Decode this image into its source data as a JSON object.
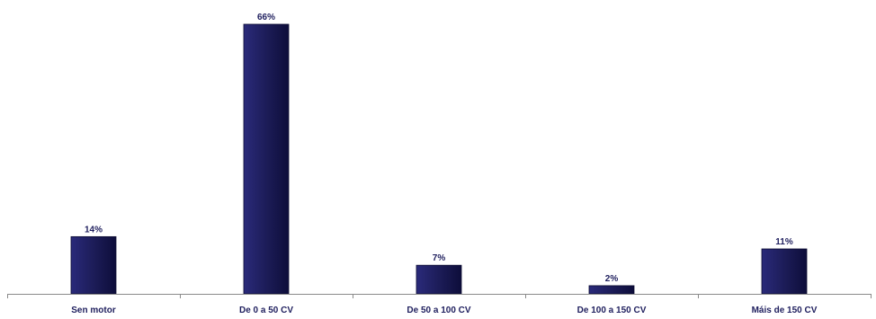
{
  "chart_data": {
    "type": "bar",
    "title": "",
    "xlabel": "",
    "ylabel": "",
    "categories": [
      "Sen motor",
      "De 0 a 50 CV",
      "De 50 a 100 CV",
      "De 100 a 150 CV",
      "Máis de 150 CV"
    ],
    "values": [
      14,
      66,
      7,
      2,
      11
    ],
    "value_labels": [
      "14%",
      "66%",
      "7%",
      "2%",
      "11%"
    ],
    "unit": "%",
    "ylim": [
      0,
      70
    ],
    "grid": false,
    "legend": "none",
    "colors": {
      "bar_dark": "#0d0d3a",
      "bar_mid": "#2a2a7a",
      "bar_light": "#1b1b55",
      "label": "#1f1f5e",
      "axis": "#8a8a8a"
    }
  }
}
